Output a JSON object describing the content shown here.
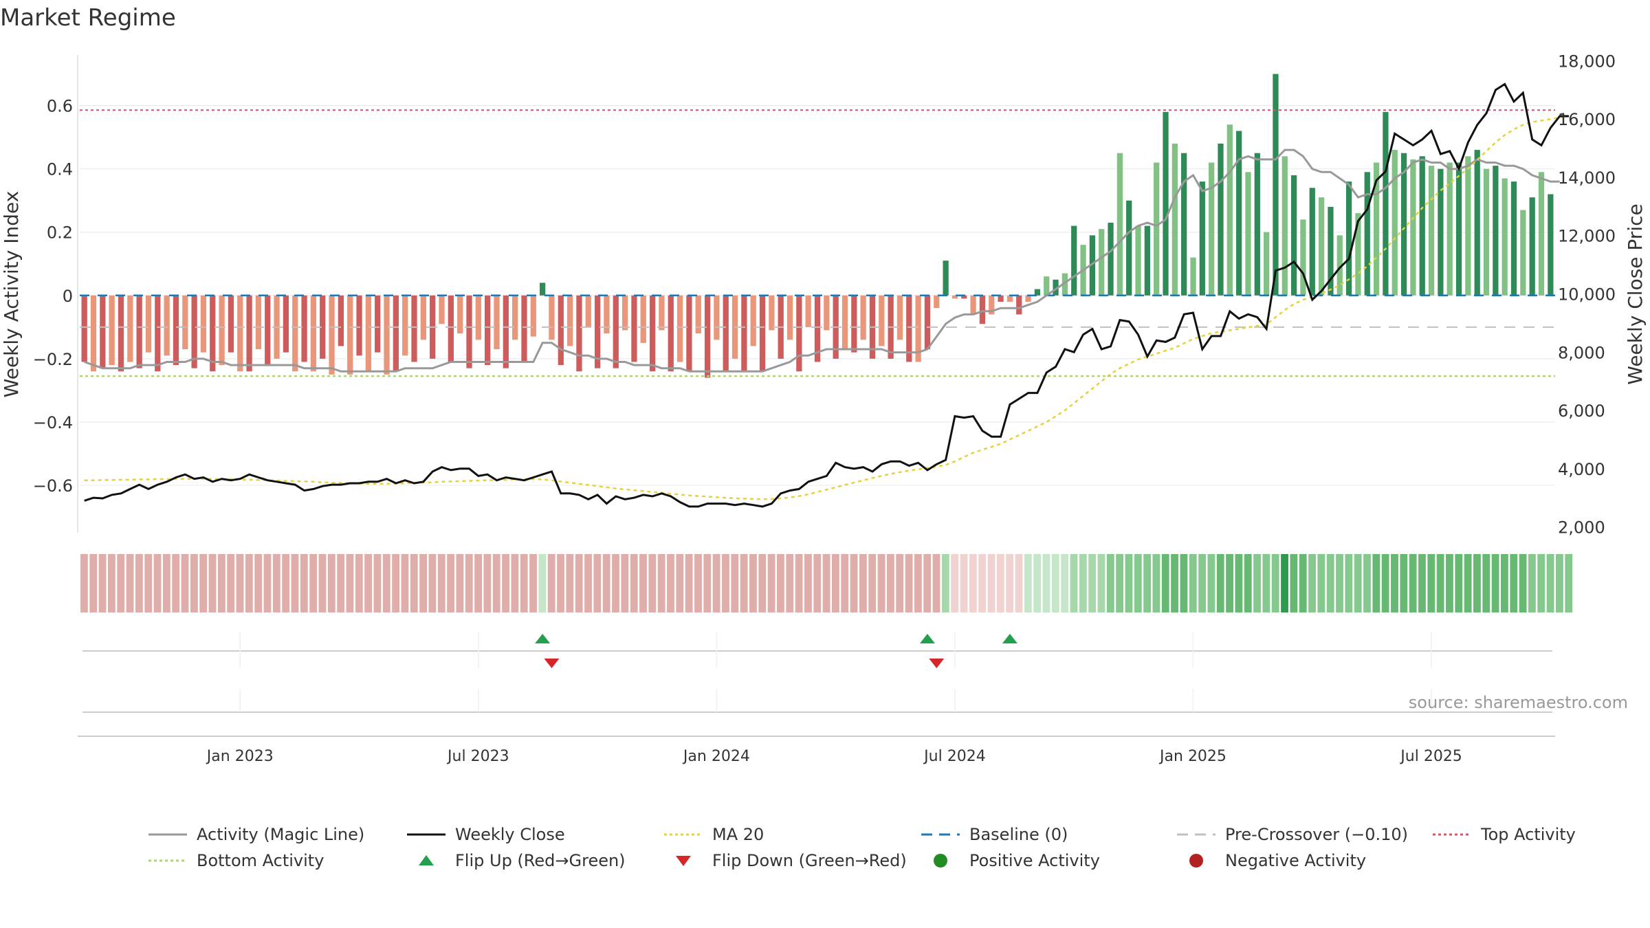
{
  "title": "Market Regime",
  "source": "source: sharemaestro.com",
  "colors": {
    "pos_dark": "#2e8b57",
    "pos_light": "#82c184",
    "neg_dark": "#cd5c5c",
    "neg_light": "#e9967a",
    "magic": "#999999",
    "close": "#111111",
    "ma20": "#e6d13a",
    "baseline": "#1f77b4",
    "precross": "#c0c0c0",
    "top": "#d9536f",
    "bottom": "#a8d86e",
    "flip_up": "#22a050",
    "flip_down": "#d62728",
    "pos_dot": "#228b22",
    "neg_dot": "#b22222"
  },
  "chart_data": {
    "type": "bar",
    "ylabel_left": "Weekly Activity Index",
    "ylabel_right": "Weekly Close Price",
    "y_left_ticks": [
      -0.6,
      -0.4,
      -0.2,
      0,
      0.2,
      0.4,
      0.6
    ],
    "y_left_tick_labels": [
      "−0.6",
      "−0.4",
      "−0.2",
      "0",
      "0.2",
      "0.4",
      "0.6"
    ],
    "y_left_range": [
      -0.75,
      0.76
    ],
    "y_right_ticks": [
      2000,
      4000,
      6000,
      8000,
      10000,
      12000,
      14000,
      16000,
      18000
    ],
    "y_right_tick_labels": [
      "2,000",
      "4,000",
      "6,000",
      "8,000",
      "10,000",
      "12,000",
      "14,000",
      "16,000",
      "18,000"
    ],
    "y_right_range": [
      1800,
      18200
    ],
    "x_ticks": [
      "Jan 2023",
      "Jul 2023",
      "Jan 2024",
      "Jul 2024",
      "Jan 2025",
      "Jul 2025"
    ],
    "x_tick_weeks": [
      17,
      43,
      69,
      95,
      121,
      147
    ],
    "top_activity": 0.586,
    "bottom_activity": -0.255,
    "pre_crossover": -0.1,
    "flip_up_weeks": [
      50,
      92,
      101
    ],
    "flip_down_weeks": [
      51,
      93
    ],
    "activity": [
      -0.21,
      -0.24,
      -0.23,
      -0.22,
      -0.24,
      -0.21,
      -0.23,
      -0.18,
      -0.24,
      -0.19,
      -0.22,
      -0.17,
      -0.23,
      -0.18,
      -0.24,
      -0.22,
      -0.18,
      -0.24,
      -0.24,
      -0.17,
      -0.22,
      -0.2,
      -0.18,
      -0.24,
      -0.21,
      -0.24,
      -0.2,
      -0.25,
      -0.16,
      -0.25,
      -0.19,
      -0.24,
      -0.18,
      -0.25,
      -0.24,
      -0.19,
      -0.21,
      -0.14,
      -0.2,
      -0.09,
      -0.21,
      -0.12,
      -0.23,
      -0.14,
      -0.22,
      -0.17,
      -0.23,
      -0.14,
      -0.21,
      -0.13,
      0.04,
      -0.14,
      -0.22,
      -0.16,
      -0.24,
      -0.1,
      -0.23,
      -0.12,
      -0.23,
      -0.11,
      -0.21,
      -0.15,
      -0.24,
      -0.11,
      -0.24,
      -0.21,
      -0.24,
      -0.12,
      -0.26,
      -0.14,
      -0.24,
      -0.2,
      -0.24,
      -0.16,
      -0.24,
      -0.11,
      -0.2,
      -0.14,
      -0.24,
      -0.1,
      -0.21,
      -0.11,
      -0.2,
      -0.17,
      -0.18,
      -0.14,
      -0.2,
      -0.16,
      -0.2,
      -0.14,
      -0.21,
      -0.21,
      -0.17,
      -0.04,
      0.11,
      -0.01,
      -0.01,
      -0.06,
      -0.09,
      -0.06,
      -0.02,
      -0.02,
      -0.06,
      -0.02,
      0.02,
      0.06,
      0.05,
      0.07,
      0.22,
      0.16,
      0.19,
      0.21,
      0.23,
      0.45,
      0.3,
      0.22,
      0.22,
      0.42,
      0.58,
      0.48,
      0.45,
      0.12,
      0.36,
      0.42,
      0.48,
      0.54,
      0.52,
      0.39,
      0.45,
      0.2,
      0.7,
      0.44,
      0.38,
      0.24,
      0.34,
      0.31,
      0.28,
      0.19,
      0.36,
      0.26,
      0.39,
      0.42,
      0.58,
      0.46,
      0.45,
      0.43,
      0.44,
      0.41,
      0.4,
      0.42,
      0.42,
      0.44,
      0.46,
      0.4,
      0.41,
      0.37,
      0.36,
      0.27,
      0.31,
      0.39,
      0.32
    ],
    "magic_line": [
      -0.21,
      -0.22,
      -0.23,
      -0.23,
      -0.23,
      -0.23,
      -0.22,
      -0.22,
      -0.22,
      -0.21,
      -0.21,
      -0.21,
      -0.2,
      -0.2,
      -0.21,
      -0.21,
      -0.22,
      -0.22,
      -0.22,
      -0.22,
      -0.22,
      -0.22,
      -0.22,
      -0.22,
      -0.23,
      -0.23,
      -0.23,
      -0.23,
      -0.24,
      -0.24,
      -0.24,
      -0.24,
      -0.24,
      -0.24,
      -0.24,
      -0.23,
      -0.23,
      -0.23,
      -0.23,
      -0.22,
      -0.21,
      -0.21,
      -0.21,
      -0.21,
      -0.21,
      -0.21,
      -0.21,
      -0.21,
      -0.21,
      -0.21,
      -0.15,
      -0.15,
      -0.17,
      -0.18,
      -0.19,
      -0.19,
      -0.2,
      -0.2,
      -0.21,
      -0.21,
      -0.22,
      -0.22,
      -0.22,
      -0.23,
      -0.23,
      -0.23,
      -0.24,
      -0.24,
      -0.24,
      -0.24,
      -0.24,
      -0.24,
      -0.24,
      -0.24,
      -0.24,
      -0.23,
      -0.22,
      -0.21,
      -0.19,
      -0.19,
      -0.18,
      -0.17,
      -0.17,
      -0.17,
      -0.17,
      -0.17,
      -0.17,
      -0.17,
      -0.18,
      -0.18,
      -0.18,
      -0.18,
      -0.17,
      -0.13,
      -0.09,
      -0.07,
      -0.06,
      -0.06,
      -0.05,
      -0.05,
      -0.04,
      -0.04,
      -0.04,
      -0.03,
      -0.02,
      0.0,
      0.02,
      0.04,
      0.06,
      0.08,
      0.1,
      0.12,
      0.14,
      0.17,
      0.2,
      0.22,
      0.23,
      0.22,
      0.24,
      0.31,
      0.36,
      0.38,
      0.33,
      0.34,
      0.36,
      0.39,
      0.43,
      0.44,
      0.43,
      0.43,
      0.43,
      0.46,
      0.46,
      0.44,
      0.4,
      0.39,
      0.39,
      0.37,
      0.35,
      0.31,
      0.32,
      0.32,
      0.34,
      0.37,
      0.39,
      0.42,
      0.43,
      0.42,
      0.42,
      0.4,
      0.4,
      0.41,
      0.43,
      0.42,
      0.42,
      0.41,
      0.41,
      0.4,
      0.38,
      0.37,
      0.36,
      0.36
    ],
    "weekly_close": [
      2900,
      3000,
      2980,
      3100,
      3150,
      3300,
      3450,
      3300,
      3450,
      3550,
      3700,
      3800,
      3650,
      3700,
      3550,
      3650,
      3600,
      3650,
      3800,
      3700,
      3600,
      3550,
      3500,
      3450,
      3250,
      3300,
      3400,
      3450,
      3450,
      3500,
      3500,
      3550,
      3550,
      3650,
      3500,
      3600,
      3500,
      3550,
      3900,
      4050,
      3950,
      4000,
      4000,
      3750,
      3800,
      3600,
      3700,
      3650,
      3600,
      3700,
      3800,
      3900,
      3150,
      3150,
      3100,
      2950,
      3100,
      2800,
      3050,
      2950,
      3000,
      3100,
      3050,
      3150,
      3050,
      2850,
      2700,
      2700,
      2800,
      2800,
      2800,
      2750,
      2800,
      2750,
      2700,
      2800,
      3150,
      3250,
      3300,
      3550,
      3650,
      3750,
      4200,
      4050,
      4000,
      4050,
      3900,
      4150,
      4250,
      4250,
      4100,
      4200,
      3950,
      4150,
      4300,
      5800,
      5750,
      5800,
      5300,
      5100,
      5100,
      6200,
      6400,
      6600,
      6600,
      7300,
      7500,
      8100,
      8000,
      8600,
      8800,
      8100,
      8200,
      9100,
      9050,
      8600,
      7850,
      8400,
      8350,
      8500,
      9300,
      9350,
      8100,
      8550,
      8550,
      9400,
      9150,
      9300,
      9200,
      8800,
      10800,
      10900,
      11100,
      10700,
      9800,
      10100,
      10500,
      10900,
      11200,
      12500,
      12900,
      13900,
      14200,
      15500,
      15300,
      15100,
      15300,
      15600,
      14800,
      14900,
      14300,
      15200,
      15800,
      16200,
      17000,
      17200,
      16600,
      16900,
      15300,
      15100,
      15700,
      16100,
      16100
    ],
    "ma20": [
      3600,
      3600,
      3610,
      3610,
      3620,
      3620,
      3630,
      3630,
      3640,
      3640,
      3650,
      3650,
      3650,
      3650,
      3650,
      3640,
      3640,
      3630,
      3620,
      3610,
      3600,
      3590,
      3580,
      3570,
      3560,
      3550,
      3530,
      3520,
      3510,
      3500,
      3490,
      3480,
      3480,
      3480,
      3490,
      3500,
      3510,
      3520,
      3530,
      3550,
      3560,
      3570,
      3580,
      3590,
      3600,
      3610,
      3620,
      3630,
      3640,
      3640,
      3630,
      3600,
      3560,
      3520,
      3480,
      3440,
      3400,
      3360,
      3320,
      3290,
      3260,
      3230,
      3200,
      3170,
      3140,
      3110,
      3080,
      3060,
      3040,
      3020,
      3000,
      2980,
      2970,
      2960,
      2950,
      2960,
      2980,
      3010,
      3060,
      3120,
      3200,
      3280,
      3360,
      3440,
      3520,
      3600,
      3680,
      3750,
      3820,
      3880,
      3930,
      3980,
      4020,
      4070,
      4130,
      4250,
      4400,
      4550,
      4650,
      4750,
      4850,
      5000,
      5150,
      5300,
      5450,
      5600,
      5800,
      6000,
      6250,
      6500,
      6750,
      7000,
      7250,
      7450,
      7600,
      7750,
      7850,
      7950,
      8050,
      8150,
      8300,
      8450,
      8550,
      8650,
      8700,
      8750,
      8800,
      8850,
      8900,
      8950,
      9200,
      9450,
      9650,
      9800,
      9900,
      10000,
      10150,
      10300,
      10500,
      10700,
      10950,
      11250,
      11550,
      11900,
      12250,
      12600,
      12950,
      13250,
      13550,
      13800,
      14050,
      14300,
      14600,
      14900,
      15200,
      15450,
      15650,
      15800,
      15900,
      15950,
      16000,
      16050,
      16100
    ],
    "regime_strip": [
      -2,
      -2,
      -2,
      -2,
      -2,
      -2,
      -2,
      -2,
      -2,
      -2,
      -2,
      -2,
      -2,
      -2,
      -2,
      -2,
      -2,
      -2,
      -2,
      -2,
      -2,
      -2,
      -2,
      -2,
      -2,
      -2,
      -2,
      -2,
      -2,
      -2,
      -2,
      -2,
      -2,
      -2,
      -2,
      -2,
      -2,
      -2,
      -2,
      -2,
      -2,
      -2,
      -2,
      -2,
      -2,
      -2,
      -2,
      -2,
      -2,
      -2,
      1,
      -2,
      -2,
      -2,
      -2,
      -2,
      -2,
      -2,
      -2,
      -2,
      -2,
      -2,
      -2,
      -2,
      -2,
      -2,
      -2,
      -2,
      -2,
      -2,
      -2,
      -2,
      -2,
      -2,
      -2,
      -2,
      -2,
      -2,
      -2,
      -2,
      -2,
      -2,
      -2,
      -2,
      -2,
      -2,
      -2,
      -2,
      -2,
      -2,
      -2,
      -2,
      -2,
      -2,
      2,
      -1,
      -1,
      -1,
      -1,
      -1,
      -1,
      -1,
      -1,
      1,
      1,
      1,
      1,
      1,
      2,
      2,
      2,
      2,
      3,
      3,
      3,
      3,
      3,
      3,
      4,
      4,
      4,
      3,
      3,
      3,
      4,
      4,
      4,
      4,
      3,
      3,
      3,
      5,
      4,
      4,
      3,
      3,
      3,
      3,
      3,
      3,
      3,
      4,
      4,
      4,
      4,
      4,
      4,
      4,
      4,
      4,
      4,
      4,
      4,
      4,
      4,
      4,
      4,
      4,
      3,
      3,
      3,
      3,
      3
    ]
  },
  "legend": [
    {
      "label": "Activity (Magic Line)",
      "kind": "solid",
      "color": "#999999"
    },
    {
      "label": "Weekly Close",
      "kind": "solid",
      "color": "#111111"
    },
    {
      "label": "MA 20",
      "kind": "dotted",
      "color": "#e6d13a"
    },
    {
      "label": "Baseline (0)",
      "kind": "dashed",
      "color": "#1f77b4"
    },
    {
      "label": "Pre-Crossover (−0.10)",
      "kind": "dashed",
      "color": "#c0c0c0"
    },
    {
      "label": "Top Activity",
      "kind": "dotted",
      "color": "#d9536f"
    },
    {
      "label": "Bottom Activity",
      "kind": "dotted",
      "color": "#a8d86e"
    },
    {
      "label": "Flip Up (Red→Green)",
      "kind": "tri-up",
      "color": "#22a050"
    },
    {
      "label": "Flip Down (Green→Red)",
      "kind": "tri-down",
      "color": "#d62728"
    },
    {
      "label": "Positive Activity",
      "kind": "dot",
      "color": "#228b22"
    },
    {
      "label": "Negative Activity",
      "kind": "dot",
      "color": "#b22222"
    }
  ]
}
